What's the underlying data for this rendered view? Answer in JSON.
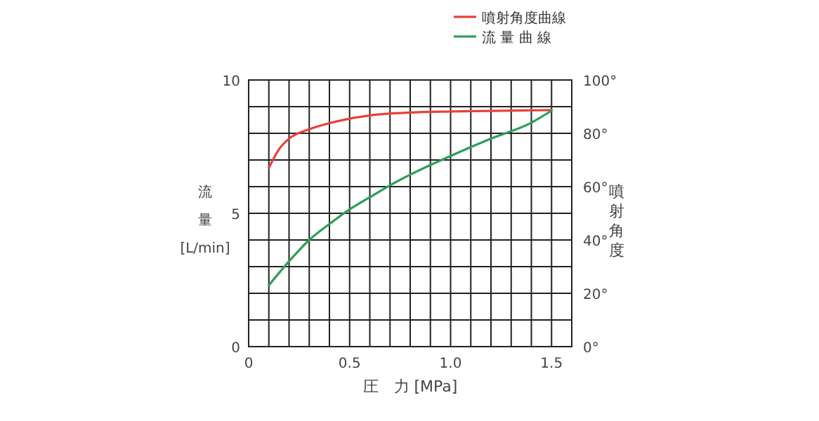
{
  "chart_data": {
    "type": "line",
    "xlabel": "圧　力 [MPa]",
    "ylabel": "流量[L/min]",
    "y2label": "噴射角度",
    "xlim": [
      0,
      1.6
    ],
    "xticks": [
      0,
      {
        "value": 0.1,
        "label": null
      },
      {
        "value": 0.2,
        "label": null
      },
      {
        "value": 0.3,
        "label": null
      },
      {
        "value": 0.4,
        "label": null
      },
      {
        "value": 0.5,
        "label": "0.5"
      },
      {
        "value": 0.6,
        "label": null
      },
      {
        "value": 0.7,
        "label": null
      },
      {
        "value": 0.8,
        "label": null
      },
      {
        "value": 0.9,
        "label": null
      },
      {
        "value": 1,
        "label": "1.0"
      },
      {
        "value": 1.1,
        "label": null
      },
      {
        "value": 1.2,
        "label": null
      },
      {
        "value": 1.3,
        "label": null
      },
      {
        "value": 1.4,
        "label": null
      },
      {
        "value": 1.5,
        "label": "1.5"
      },
      {
        "value": 1.6,
        "label": null
      }
    ],
    "ylim": [
      0,
      10
    ],
    "yticks": [
      0,
      {
        "value": 1,
        "label": null
      },
      {
        "value": 2,
        "label": null
      },
      {
        "value": 3,
        "label": null
      },
      {
        "value": 4,
        "label": null
      },
      5,
      {
        "value": 6,
        "label": null
      },
      {
        "value": 7,
        "label": null
      },
      {
        "value": 8,
        "label": null
      },
      {
        "value": 9,
        "label": null
      },
      10
    ],
    "y2lim": [
      0,
      100
    ],
    "y2ticks": [
      {
        "value": 0,
        "label": "0°"
      },
      {
        "value": 20,
        "label": "20°"
      },
      {
        "value": 40,
        "label": "40°"
      },
      {
        "value": 60,
        "label": "60°"
      },
      {
        "value": 80,
        "label": "80°"
      },
      {
        "value": 100,
        "label": "100°"
      }
    ],
    "grid": true,
    "legend": "top right",
    "marker": "none",
    "line_style": "solid",
    "series": [
      {
        "name": "噴射角度曲線",
        "color": "#e8413a",
        "axis": "y2",
        "x": [
          0.1,
          0.15,
          0.2,
          0.3,
          0.4,
          0.5,
          0.6,
          0.8,
          1.0,
          1.5
        ],
        "values": [
          67,
          74,
          78,
          81.5,
          83.8,
          85.5,
          86.7,
          87.8,
          88.2,
          88.7
        ]
      },
      {
        "name": "流 量 曲 線",
        "color": "#2e9e5b",
        "x": [
          0.1,
          0.2,
          0.3,
          0.4,
          0.5,
          0.6,
          0.7,
          0.8,
          1.0,
          1.2,
          1.4,
          1.5
        ],
        "values": [
          2.3,
          3.2,
          4.0,
          4.6,
          5.15,
          5.6,
          6.05,
          6.45,
          7.15,
          7.8,
          8.4,
          8.85
        ]
      }
    ]
  }
}
